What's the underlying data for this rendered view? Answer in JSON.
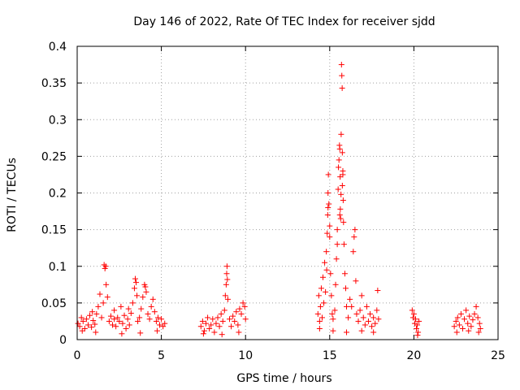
{
  "chart_data": {
    "type": "scatter",
    "title": "Day 146 of 2022, Rate Of TEC Index for receiver sjdd",
    "xlabel": "GPS time / hours",
    "ylabel": "ROTI / TECUs",
    "xlim": [
      0,
      25
    ],
    "ylim": [
      0,
      0.4
    ],
    "grid": true,
    "marker": "plus",
    "colors": {
      "series": "#ff0000",
      "grid": "#a0a0a0",
      "axes": "#000000"
    },
    "x_ticks": [
      {
        "value": 0,
        "label": "0"
      },
      {
        "value": 5,
        "label": "5"
      },
      {
        "value": 10,
        "label": "10"
      },
      {
        "value": 15,
        "label": "15"
      },
      {
        "value": 20,
        "label": "20"
      },
      {
        "value": 25,
        "label": "25"
      }
    ],
    "y_ticks": [
      {
        "value": 0,
        "label": "0"
      },
      {
        "value": 0.05,
        "label": "0.05"
      },
      {
        "value": 0.1,
        "label": "0.1"
      },
      {
        "value": 0.15,
        "label": "0.15"
      },
      {
        "value": 0.2,
        "label": "0.2"
      },
      {
        "value": 0.25,
        "label": "0.25"
      },
      {
        "value": 0.3,
        "label": "0.3"
      },
      {
        "value": 0.35,
        "label": "0.35"
      },
      {
        "value": 0.4,
        "label": "0.4"
      }
    ],
    "series": [
      {
        "name": "ROTI",
        "points": [
          [
            0.05,
            0.022
          ],
          [
            0.15,
            0.018
          ],
          [
            0.25,
            0.03
          ],
          [
            0.35,
            0.025
          ],
          [
            0.45,
            0.015
          ],
          [
            0.55,
            0.028
          ],
          [
            0.65,
            0.02
          ],
          [
            0.75,
            0.033
          ],
          [
            0.85,
            0.017
          ],
          [
            0.95,
            0.026
          ],
          [
            1.05,
            0.021
          ],
          [
            1.15,
            0.035
          ],
          [
            1.25,
            0.045
          ],
          [
            1.35,
            0.062
          ],
          [
            1.45,
            0.03
          ],
          [
            1.55,
            0.05
          ],
          [
            1.6,
            0.102
          ],
          [
            1.65,
            0.097
          ],
          [
            1.7,
            0.1
          ],
          [
            1.72,
            0.075
          ],
          [
            1.8,
            0.058
          ],
          [
            1.9,
            0.025
          ],
          [
            2.0,
            0.032
          ],
          [
            2.1,
            0.02
          ],
          [
            2.2,
            0.028
          ],
          [
            2.3,
            0.018
          ],
          [
            2.4,
            0.03
          ],
          [
            2.5,
            0.025
          ],
          [
            2.6,
            0.045
          ],
          [
            2.7,
            0.022
          ],
          [
            2.8,
            0.033
          ],
          [
            2.9,
            0.015
          ],
          [
            3.0,
            0.028
          ],
          [
            3.1,
            0.02
          ],
          [
            3.2,
            0.036
          ],
          [
            3.3,
            0.05
          ],
          [
            3.4,
            0.07
          ],
          [
            3.45,
            0.083
          ],
          [
            3.5,
            0.078
          ],
          [
            3.55,
            0.06
          ],
          [
            3.6,
            0.025
          ],
          [
            3.7,
            0.03
          ],
          [
            3.8,
            0.042
          ],
          [
            3.9,
            0.058
          ],
          [
            4.0,
            0.075
          ],
          [
            4.05,
            0.072
          ],
          [
            4.1,
            0.065
          ],
          [
            4.2,
            0.035
          ],
          [
            4.3,
            0.028
          ],
          [
            4.4,
            0.045
          ],
          [
            4.5,
            0.055
          ],
          [
            4.6,
            0.038
          ],
          [
            4.7,
            0.025
          ],
          [
            4.8,
            0.03
          ],
          [
            4.9,
            0.02
          ],
          [
            5.0,
            0.028
          ],
          [
            5.1,
            0.018
          ],
          [
            5.2,
            0.022
          ],
          [
            0.3,
            0.012
          ],
          [
            1.1,
            0.01
          ],
          [
            2.65,
            0.008
          ],
          [
            3.75,
            0.009
          ],
          [
            4.75,
            0.012
          ],
          [
            0.9,
            0.038
          ],
          [
            2.2,
            0.04
          ],
          [
            3.05,
            0.042
          ],
          [
            7.35,
            0.018
          ],
          [
            7.45,
            0.025
          ],
          [
            7.55,
            0.012
          ],
          [
            7.65,
            0.022
          ],
          [
            7.75,
            0.03
          ],
          [
            7.85,
            0.015
          ],
          [
            7.95,
            0.02
          ],
          [
            8.05,
            0.028
          ],
          [
            8.15,
            0.01
          ],
          [
            8.25,
            0.022
          ],
          [
            8.35,
            0.03
          ],
          [
            8.45,
            0.018
          ],
          [
            8.55,
            0.035
          ],
          [
            8.65,
            0.025
          ],
          [
            8.75,
            0.04
          ],
          [
            8.8,
            0.06
          ],
          [
            8.85,
            0.075
          ],
          [
            8.88,
            0.09
          ],
          [
            8.9,
            0.1
          ],
          [
            8.92,
            0.082
          ],
          [
            8.95,
            0.055
          ],
          [
            9.05,
            0.028
          ],
          [
            9.15,
            0.018
          ],
          [
            9.25,
            0.032
          ],
          [
            9.35,
            0.025
          ],
          [
            9.45,
            0.038
          ],
          [
            9.55,
            0.02
          ],
          [
            9.65,
            0.042
          ],
          [
            9.75,
            0.035
          ],
          [
            9.85,
            0.05
          ],
          [
            9.95,
            0.045
          ],
          [
            10.0,
            0.028
          ],
          [
            7.5,
            0.008
          ],
          [
            8.6,
            0.007
          ],
          [
            9.6,
            0.01
          ],
          [
            14.3,
            0.035
          ],
          [
            14.35,
            0.06
          ],
          [
            14.4,
            0.025
          ],
          [
            14.45,
            0.045
          ],
          [
            14.5,
            0.07
          ],
          [
            14.55,
            0.03
          ],
          [
            14.6,
            0.085
          ],
          [
            14.65,
            0.05
          ],
          [
            14.7,
            0.105
          ],
          [
            14.75,
            0.065
          ],
          [
            14.8,
            0.12
          ],
          [
            14.82,
            0.095
          ],
          [
            14.85,
            0.145
          ],
          [
            14.88,
            0.17
          ],
          [
            14.9,
            0.2
          ],
          [
            14.92,
            0.225
          ],
          [
            14.95,
            0.185
          ],
          [
            15.0,
            0.155
          ],
          [
            15.05,
            0.09
          ],
          [
            15.1,
            0.06
          ],
          [
            15.15,
            0.035
          ],
          [
            15.2,
            0.028
          ],
          [
            15.3,
            0.04
          ],
          [
            15.35,
            0.075
          ],
          [
            15.4,
            0.11
          ],
          [
            15.45,
            0.15
          ],
          [
            15.5,
            0.205
          ],
          [
            15.52,
            0.235
          ],
          [
            15.55,
            0.245
          ],
          [
            15.58,
            0.265
          ],
          [
            15.6,
            0.26
          ],
          [
            15.62,
            0.222
          ],
          [
            15.63,
            0.178
          ],
          [
            15.65,
            0.165
          ],
          [
            15.67,
            0.198
          ],
          [
            15.68,
            0.28
          ],
          [
            15.7,
            0.375
          ],
          [
            15.72,
            0.36
          ],
          [
            15.74,
            0.343
          ],
          [
            15.75,
            0.255
          ],
          [
            15.78,
            0.23
          ],
          [
            15.8,
            0.19
          ],
          [
            15.82,
            0.16
          ],
          [
            15.85,
            0.13
          ],
          [
            15.9,
            0.09
          ],
          [
            15.95,
            0.07
          ],
          [
            16.0,
            0.045
          ],
          [
            16.1,
            0.03
          ],
          [
            16.2,
            0.055
          ],
          [
            16.3,
            0.045
          ],
          [
            16.4,
            0.12
          ],
          [
            16.45,
            0.14
          ],
          [
            16.5,
            0.15
          ],
          [
            16.55,
            0.08
          ],
          [
            16.6,
            0.035
          ],
          [
            16.7,
            0.025
          ],
          [
            16.8,
            0.04
          ],
          [
            16.9,
            0.06
          ],
          [
            17.0,
            0.03
          ],
          [
            17.1,
            0.02
          ],
          [
            17.2,
            0.045
          ],
          [
            17.3,
            0.025
          ],
          [
            17.4,
            0.035
          ],
          [
            17.5,
            0.018
          ],
          [
            17.6,
            0.03
          ],
          [
            17.7,
            0.022
          ],
          [
            17.8,
            0.04
          ],
          [
            17.85,
            0.067
          ],
          [
            17.9,
            0.028
          ],
          [
            14.4,
            0.015
          ],
          [
            15.2,
            0.012
          ],
          [
            16.0,
            0.01
          ],
          [
            16.9,
            0.012
          ],
          [
            17.6,
            0.01
          ],
          [
            15.45,
            0.13
          ],
          [
            15.6,
            0.17
          ],
          [
            15.75,
            0.21
          ],
          [
            15.78,
            0.225
          ],
          [
            14.9,
            0.18
          ],
          [
            15.0,
            0.14
          ],
          [
            19.9,
            0.04
          ],
          [
            19.95,
            0.03
          ],
          [
            20.0,
            0.035
          ],
          [
            20.05,
            0.022
          ],
          [
            20.1,
            0.028
          ],
          [
            20.15,
            0.015
          ],
          [
            20.2,
            0.02
          ],
          [
            20.25,
            0.01
          ],
          [
            20.3,
            0.025
          ],
          [
            20.22,
            0.006
          ],
          [
            22.4,
            0.018
          ],
          [
            22.5,
            0.025
          ],
          [
            22.6,
            0.03
          ],
          [
            22.7,
            0.02
          ],
          [
            22.8,
            0.035
          ],
          [
            22.9,
            0.015
          ],
          [
            23.0,
            0.028
          ],
          [
            23.1,
            0.04
          ],
          [
            23.2,
            0.022
          ],
          [
            23.3,
            0.032
          ],
          [
            23.4,
            0.018
          ],
          [
            23.5,
            0.027
          ],
          [
            23.6,
            0.035
          ],
          [
            23.7,
            0.045
          ],
          [
            23.8,
            0.03
          ],
          [
            23.9,
            0.022
          ],
          [
            23.95,
            0.015
          ],
          [
            22.55,
            0.01
          ],
          [
            23.25,
            0.012
          ],
          [
            23.85,
            0.01
          ]
        ]
      }
    ]
  }
}
